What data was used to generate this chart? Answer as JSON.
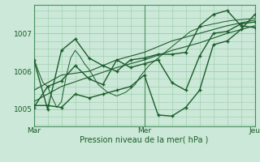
{
  "bg_color": "#cce8d8",
  "grid_color": "#99ccaa",
  "line_color": "#1a5c2a",
  "xlabel": "Pression niveau de la mer( hPa )",
  "yticks": [
    1005,
    1006,
    1007
  ],
  "ylim": [
    1004.55,
    1007.75
  ],
  "xlim": [
    0,
    48
  ],
  "xtick_positions": [
    0,
    24,
    48
  ],
  "xtick_labels": [
    "Mar",
    "Mer",
    "Jeu"
  ],
  "series": [
    {
      "x": [
        0,
        1,
        2,
        3,
        4,
        5,
        6,
        7,
        8,
        9,
        10,
        11,
        12,
        13,
        14,
        15,
        16,
        17,
        18,
        19,
        20,
        21,
        22,
        23,
        24,
        25,
        26,
        27,
        28,
        29,
        30,
        31,
        32,
        33,
        34,
        35,
        36,
        37,
        38,
        39,
        40,
        41,
        42,
        43,
        44,
        45,
        46,
        47,
        48
      ],
      "y": [
        1006.35,
        1006.0,
        1005.7,
        1005.6,
        1005.3,
        1005.05,
        1005.2,
        1005.85,
        1006.35,
        1006.55,
        1006.4,
        1006.2,
        1006.05,
        1005.85,
        1005.65,
        1005.55,
        1005.45,
        1005.4,
        1005.35,
        1005.4,
        1005.45,
        1005.55,
        1005.65,
        1005.85,
        1006.0,
        1006.15,
        1006.25,
        1006.35,
        1006.45,
        1006.55,
        1006.65,
        1006.75,
        1006.85,
        1006.95,
        1007.05,
        1007.1,
        1007.15,
        1007.2,
        1007.22,
        1007.25,
        1007.27,
        1007.3,
        1007.32,
        1007.34,
        1007.35,
        1007.36,
        1007.37,
        1007.38,
        1007.4
      ],
      "lw": 0.7,
      "marker": false
    },
    {
      "x": [
        0,
        3,
        6,
        9,
        12,
        15,
        18,
        21,
        24,
        27,
        30,
        33,
        36,
        39,
        42,
        45,
        48
      ],
      "y": [
        1005.05,
        1005.6,
        1005.75,
        1006.15,
        1005.8,
        1005.65,
        1006.3,
        1006.1,
        1006.2,
        1006.3,
        1005.7,
        1005.5,
        1006.4,
        1007.0,
        1007.05,
        1007.25,
        1007.3
      ],
      "lw": 1.0,
      "marker": true
    },
    {
      "x": [
        0,
        3,
        6,
        9,
        12,
        15,
        18,
        21,
        24,
        27,
        30,
        33,
        36,
        39,
        42,
        45,
        48
      ],
      "y": [
        1005.1,
        1005.1,
        1005.05,
        1005.4,
        1005.3,
        1005.4,
        1005.5,
        1005.6,
        1005.9,
        1004.85,
        1004.82,
        1005.05,
        1005.5,
        1006.7,
        1006.8,
        1007.1,
        1007.5
      ],
      "lw": 1.0,
      "marker": true
    },
    {
      "x": [
        0,
        3,
        6,
        9,
        12,
        15,
        18,
        21,
        24,
        27,
        30,
        33,
        36,
        39,
        42,
        45,
        48
      ],
      "y": [
        1006.3,
        1005.0,
        1006.55,
        1006.85,
        1006.35,
        1006.15,
        1006.0,
        1006.3,
        1006.35,
        1006.45,
        1006.45,
        1006.5,
        1007.2,
        1007.5,
        1007.6,
        1007.2,
        1007.15
      ],
      "lw": 1.0,
      "marker": true
    },
    {
      "x": [
        0,
        6,
        12,
        18,
        24,
        30,
        36,
        42,
        48
      ],
      "y": [
        1005.5,
        1005.9,
        1006.0,
        1006.3,
        1006.5,
        1006.8,
        1007.0,
        1007.2,
        1007.35
      ],
      "lw": 0.8,
      "marker": false
    },
    {
      "x": [
        0,
        6,
        12,
        18,
        24,
        30,
        36,
        42,
        48
      ],
      "y": [
        1005.2,
        1005.6,
        1005.85,
        1006.1,
        1006.3,
        1006.55,
        1006.75,
        1007.0,
        1007.2
      ],
      "lw": 0.8,
      "marker": false
    }
  ]
}
